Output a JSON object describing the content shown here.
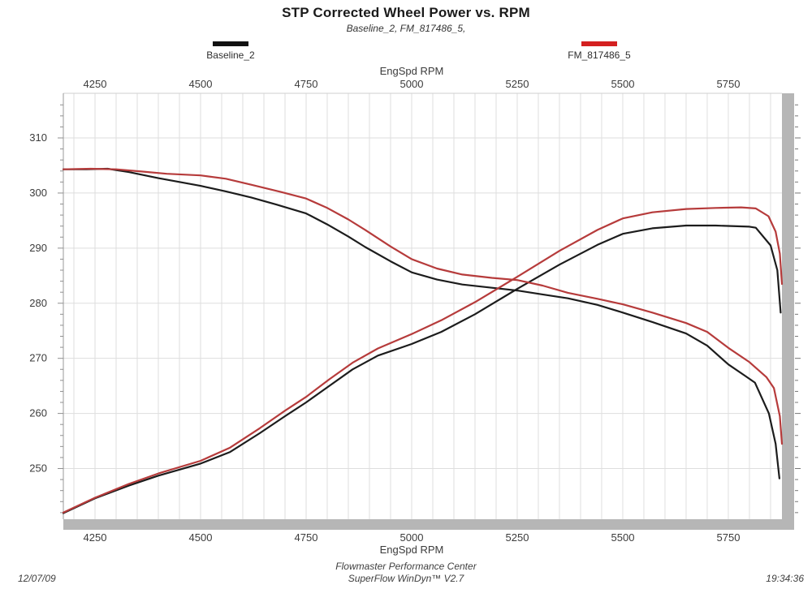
{
  "header": {
    "title": "STP Corrected Wheel Power vs. RPM",
    "subtitle": "Baseline_2, FM_817486_5,"
  },
  "legend": [
    {
      "label": "Baseline_2",
      "color": "#111111"
    },
    {
      "label": "FM_817486_5",
      "color": "#d42020"
    }
  ],
  "footer": {
    "date": "12/07/09",
    "center_line1": "Flowmaster Performance Center",
    "center_line2": "SuperFlow WinDyn™ V2.7",
    "time": "19:34:36"
  },
  "chart_data": {
    "type": "line",
    "title": "STP Corrected Wheel Power vs. RPM",
    "subtitle": "Baseline_2, FM_817486_5,",
    "xlabel_top": "EngSpd  RPM",
    "xlabel_bottom": "EngSpd  RPM",
    "ylabel": "",
    "x_ticks": [
      4250,
      4500,
      4750,
      5000,
      5250,
      5500,
      5750
    ],
    "y_ticks": [
      250,
      260,
      270,
      280,
      290,
      300,
      310
    ],
    "xlim": [
      4175,
      5877
    ],
    "ylim": [
      240.8,
      318.1
    ],
    "grid": {
      "x_minor_step": 50,
      "y_major_step": 10,
      "color": "#dedede",
      "minor_tick_step": 2
    },
    "legend_position": "top",
    "axis_colors": {
      "tick": "#8f8f8f",
      "label": "#3b3b3b",
      "thick_bar": "#b6b6b6"
    },
    "series": [
      {
        "name": "Baseline_2 rising curve",
        "color": "#1c1c1c",
        "points": [
          [
            4175,
            241.9
          ],
          [
            4250,
            244.6
          ],
          [
            4330,
            246.9
          ],
          [
            4400,
            248.7
          ],
          [
            4500,
            250.9
          ],
          [
            4570,
            253.0
          ],
          [
            4640,
            256.4
          ],
          [
            4700,
            259.5
          ],
          [
            4750,
            262.0
          ],
          [
            4805,
            265.0
          ],
          [
            4860,
            268.0
          ],
          [
            4920,
            270.5
          ],
          [
            5000,
            272.6
          ],
          [
            5070,
            274.8
          ],
          [
            5150,
            278.0
          ],
          [
            5250,
            282.6
          ],
          [
            5350,
            287.0
          ],
          [
            5440,
            290.6
          ],
          [
            5500,
            292.6
          ],
          [
            5570,
            293.6
          ],
          [
            5650,
            294.1
          ],
          [
            5720,
            294.1
          ],
          [
            5800,
            293.9
          ],
          [
            5815,
            293.7
          ],
          [
            5850,
            290.5
          ],
          [
            5866,
            286.0
          ],
          [
            5874,
            278.3
          ]
        ]
      },
      {
        "name": "Baseline_2 falling curve",
        "color": "#1c1c1c",
        "points": [
          [
            4175,
            304.3
          ],
          [
            4230,
            304.3
          ],
          [
            4280,
            304.4
          ],
          [
            4330,
            303.8
          ],
          [
            4400,
            302.7
          ],
          [
            4450,
            302.0
          ],
          [
            4500,
            301.3
          ],
          [
            4560,
            300.3
          ],
          [
            4620,
            299.2
          ],
          [
            4680,
            297.9
          ],
          [
            4750,
            296.3
          ],
          [
            4800,
            294.3
          ],
          [
            4850,
            292.1
          ],
          [
            4890,
            290.2
          ],
          [
            4950,
            287.6
          ],
          [
            5000,
            285.6
          ],
          [
            5060,
            284.3
          ],
          [
            5120,
            283.4
          ],
          [
            5190,
            282.8
          ],
          [
            5250,
            282.3
          ],
          [
            5310,
            281.6
          ],
          [
            5370,
            280.9
          ],
          [
            5440,
            279.7
          ],
          [
            5500,
            278.3
          ],
          [
            5570,
            276.6
          ],
          [
            5650,
            274.5
          ],
          [
            5700,
            272.3
          ],
          [
            5750,
            268.9
          ],
          [
            5790,
            266.8
          ],
          [
            5813,
            265.6
          ],
          [
            5846,
            260.0
          ],
          [
            5862,
            254.5
          ],
          [
            5871,
            248.2
          ]
        ]
      },
      {
        "name": "FM_817486_5 rising curve",
        "color": "#b63b3b",
        "points": [
          [
            4175,
            242.0
          ],
          [
            4250,
            244.7
          ],
          [
            4330,
            247.2
          ],
          [
            4400,
            249.1
          ],
          [
            4500,
            251.4
          ],
          [
            4570,
            253.8
          ],
          [
            4640,
            257.3
          ],
          [
            4700,
            260.5
          ],
          [
            4750,
            263.0
          ],
          [
            4805,
            266.2
          ],
          [
            4860,
            269.2
          ],
          [
            4920,
            271.8
          ],
          [
            5000,
            274.4
          ],
          [
            5070,
            276.9
          ],
          [
            5150,
            280.2
          ],
          [
            5250,
            284.8
          ],
          [
            5350,
            289.5
          ],
          [
            5440,
            293.3
          ],
          [
            5500,
            295.4
          ],
          [
            5570,
            296.5
          ],
          [
            5650,
            297.1
          ],
          [
            5720,
            297.3
          ],
          [
            5780,
            297.4
          ],
          [
            5815,
            297.2
          ],
          [
            5845,
            295.8
          ],
          [
            5862,
            293.0
          ],
          [
            5872,
            289.0
          ],
          [
            5877,
            283.5
          ]
        ]
      },
      {
        "name": "FM_817486_5 falling curve",
        "color": "#b63b3b",
        "points": [
          [
            4175,
            304.3
          ],
          [
            4240,
            304.4
          ],
          [
            4300,
            304.3
          ],
          [
            4360,
            303.9
          ],
          [
            4420,
            303.5
          ],
          [
            4500,
            303.2
          ],
          [
            4560,
            302.6
          ],
          [
            4620,
            301.5
          ],
          [
            4690,
            300.2
          ],
          [
            4750,
            299.0
          ],
          [
            4800,
            297.3
          ],
          [
            4850,
            295.2
          ],
          [
            4890,
            293.3
          ],
          [
            4950,
            290.3
          ],
          [
            5000,
            288.0
          ],
          [
            5060,
            286.3
          ],
          [
            5120,
            285.2
          ],
          [
            5190,
            284.6
          ],
          [
            5250,
            284.2
          ],
          [
            5310,
            283.2
          ],
          [
            5370,
            281.9
          ],
          [
            5440,
            280.8
          ],
          [
            5500,
            279.8
          ],
          [
            5570,
            278.3
          ],
          [
            5650,
            276.4
          ],
          [
            5700,
            274.8
          ],
          [
            5750,
            271.9
          ],
          [
            5800,
            269.3
          ],
          [
            5840,
            266.6
          ],
          [
            5858,
            264.6
          ],
          [
            5872,
            259.5
          ],
          [
            5877,
            254.5
          ]
        ]
      }
    ]
  }
}
